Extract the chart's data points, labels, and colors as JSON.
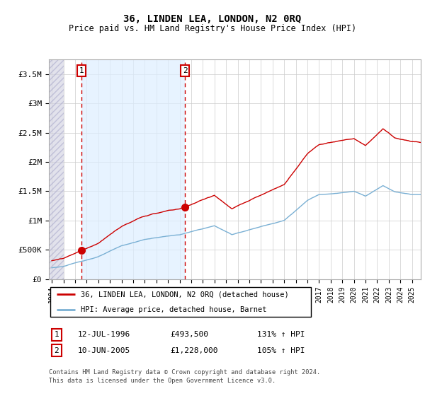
{
  "title": "36, LINDEN LEA, LONDON, N2 0RQ",
  "subtitle": "Price paid vs. HM Land Registry's House Price Index (HPI)",
  "legend_line1": "36, LINDEN LEA, LONDON, N2 0RQ (detached house)",
  "legend_line2": "HPI: Average price, detached house, Barnet",
  "sale1_date": "12-JUL-1996",
  "sale1_price": 493500,
  "sale1_label": "1",
  "sale1_hpi_text": "131% ↑ HPI",
  "sale2_date": "10-JUN-2005",
  "sale2_price": 1228000,
  "sale2_label": "2",
  "sale2_hpi_text": "105% ↑ HPI",
  "footer1": "Contains HM Land Registry data © Crown copyright and database right 2024.",
  "footer2": "This data is licensed under the Open Government Licence v3.0.",
  "red_color": "#cc0000",
  "blue_color": "#7ab0d4",
  "hatch_color": "#c8c8d8",
  "between_fill_color": "#ddeeff",
  "ylim": [
    0,
    3750000
  ],
  "yticks": [
    0,
    500000,
    1000000,
    1500000,
    2000000,
    2500000,
    3000000,
    3500000
  ],
  "xlim_start": 1993.75,
  "xlim_end": 2025.75,
  "sale1_year_float": 1996.542,
  "sale2_year_float": 2005.458
}
